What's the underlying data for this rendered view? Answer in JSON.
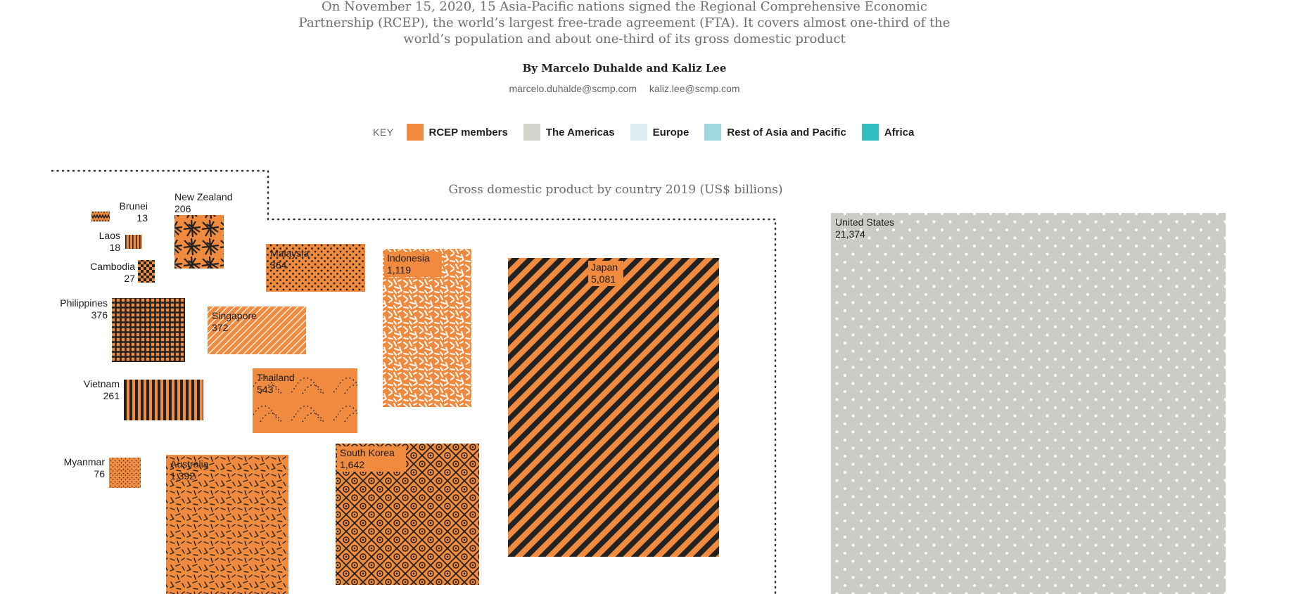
{
  "intro": "On November 15, 2020, 15 Asia-Pacific nations signed the Regional Comprehensive Economic Partnership (RCEP), the world’s largest free-trade agreement (FTA). It  covers almost one-third of the world’s population and about one-third of its gross domestic product",
  "byline": "By Marcelo Duhalde and Kaliz Lee",
  "emails": [
    "marcelo.duhalde@scmp.com",
    "kaliz.lee@scmp.com"
  ],
  "key": {
    "label": "KEY",
    "items": [
      {
        "label": "RCEP members",
        "color": "#ef8a3f"
      },
      {
        "label": "The Americas",
        "color": "#d5d3ce"
      },
      {
        "label": "Europe",
        "color": "#dfeef2"
      },
      {
        "label": "Rest of Asia and Pacific",
        "color": "#9fd8df"
      },
      {
        "label": "Africa",
        "color": "#33bfc0"
      }
    ]
  },
  "chart_data": {
    "type": "treemap",
    "title": "Gross domestic product by country 2019 (US$ billions)",
    "unit": "US$ billions",
    "items": [
      {
        "name": "Brunei",
        "value": 13,
        "group": "RCEP members",
        "pattern": "zigzag"
      },
      {
        "name": "New Zealand",
        "value": 206,
        "group": "RCEP members",
        "pattern": "sticks"
      },
      {
        "name": "Laos",
        "value": 18,
        "group": "RCEP members",
        "pattern": "vstripes-fine"
      },
      {
        "name": "Cambodia",
        "value": 27,
        "group": "RCEP members",
        "pattern": "checker"
      },
      {
        "name": "Malaysia",
        "value": 364,
        "group": "RCEP members",
        "pattern": "dots"
      },
      {
        "name": "Indonesia",
        "value": 1119,
        "group": "RCEP members",
        "pattern": "white-scribble"
      },
      {
        "name": "Japan",
        "value": 5081,
        "group": "RCEP members",
        "pattern": "diagonal-stripes"
      },
      {
        "name": "Philippines",
        "value": 376,
        "group": "RCEP members",
        "pattern": "grid"
      },
      {
        "name": "Singapore",
        "value": 372,
        "group": "RCEP members",
        "pattern": "white-hatch"
      },
      {
        "name": "Vietnam",
        "value": 261,
        "group": "RCEP members",
        "pattern": "vstripes"
      },
      {
        "name": "Thailand",
        "value": 543,
        "group": "RCEP members",
        "pattern": "dotted-curves"
      },
      {
        "name": "Myanmar",
        "value": 76,
        "group": "RCEP members",
        "pattern": "speckle"
      },
      {
        "name": "Australia",
        "value": 1392,
        "group": "RCEP members",
        "pattern": "dashes"
      },
      {
        "name": "South Korea",
        "value": 1642,
        "group": "RCEP members",
        "pattern": "diamond-circles"
      },
      {
        "name": "United States",
        "value": 21374,
        "group": "The Americas",
        "pattern": "white-dots"
      }
    ]
  }
}
